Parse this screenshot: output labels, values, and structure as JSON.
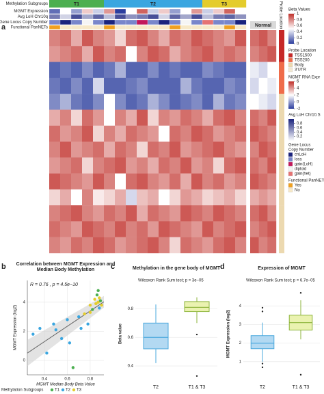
{
  "panel_a": {
    "label": "a",
    "track_labels": [
      "Methylation Subgroups",
      "MGMT Expression",
      "Avg LoH Chr10q",
      "Gene Locus Copy Number",
      "Functional PanNETs"
    ],
    "subgroups": {
      "names": [
        "T1",
        "T2",
        "T3"
      ],
      "colors": [
        "#4caf50",
        "#3aa6e0",
        "#e4cc2c"
      ],
      "values": [
        0,
        0,
        0,
        0,
        0,
        1,
        1,
        1,
        1,
        1,
        1,
        1,
        1,
        1,
        2,
        2,
        2,
        2
      ]
    },
    "mgmt_expression": [
      -1,
      2,
      0,
      3,
      1,
      4,
      -2,
      2,
      5,
      1,
      3,
      0,
      2,
      4,
      1,
      3,
      5,
      2
    ],
    "avg_loh": [
      0.6,
      0.2,
      0.8,
      0.4,
      0.7,
      0.3,
      0.8,
      0.5,
      0.6,
      0.8,
      0.2,
      0.7,
      0.4,
      0.8,
      0.3,
      0.6,
      0.7,
      0.5
    ],
    "copy_number": [
      1,
      0,
      1,
      3,
      1,
      0,
      1,
      1,
      2,
      1,
      0,
      1,
      3,
      1,
      4,
      1,
      1,
      0
    ],
    "functional": [
      0,
      1,
      1,
      1,
      1,
      0,
      1,
      1,
      1,
      1,
      1,
      0,
      1,
      1,
      1,
      1,
      0,
      1
    ],
    "normal_label": "Normal",
    "probe_location_label": "Probe Location",
    "probe_location": [
      0,
      0,
      1,
      1,
      2,
      2,
      2,
      2,
      2,
      2,
      2,
      2,
      2,
      2
    ],
    "heatmap": {
      "values": [
        [
          0.8,
          0.85,
          0.7,
          0.9,
          0.8,
          0.75,
          0.6,
          0.85,
          0.9,
          0.8,
          0.7,
          0.85,
          0.8,
          0.9,
          0.85,
          0.8,
          0.75,
          0.9
        ],
        [
          0.75,
          0.8,
          0.85,
          0.7,
          0.9,
          0.8,
          0.85,
          0.5,
          0.8,
          0.9,
          0.85,
          0.7,
          0.8,
          0.85,
          0.9,
          0.8,
          0.85,
          0.8
        ],
        [
          0.1,
          0.15,
          0.1,
          0.2,
          0.1,
          0.15,
          0.3,
          0.1,
          0.1,
          0.2,
          0.1,
          0.15,
          0.1,
          0.1,
          0.2,
          0.15,
          0.1,
          0.1
        ],
        [
          0.15,
          0.1,
          0.2,
          0.1,
          0.4,
          0.1,
          0.1,
          0.15,
          0.2,
          0.1,
          0.1,
          0.1,
          0.3,
          0.15,
          0.1,
          0.1,
          0.2,
          0.15
        ],
        [
          0.2,
          0.3,
          0.15,
          0.1,
          0.2,
          0.5,
          0.2,
          0.1,
          0.15,
          0.3,
          0.2,
          0.1,
          0.15,
          0.2,
          0.1,
          0.3,
          0.15,
          0.2
        ],
        [
          0.7,
          0.8,
          0.6,
          0.85,
          0.75,
          0.5,
          0.8,
          0.7,
          0.9,
          0.6,
          0.8,
          0.75,
          0.85,
          0.8,
          0.7,
          0.85,
          0.9,
          0.8
        ],
        [
          0.85,
          0.75,
          0.8,
          0.9,
          0.6,
          0.8,
          0.7,
          0.85,
          0.8,
          0.75,
          0.5,
          0.85,
          0.8,
          0.9,
          0.85,
          0.75,
          0.8,
          0.85
        ],
        [
          0.8,
          0.9,
          0.75,
          0.8,
          0.85,
          0.7,
          0.85,
          0.8,
          0.6,
          0.85,
          0.8,
          0.9,
          0.75,
          0.8,
          0.85,
          0.9,
          0.8,
          0.75
        ],
        [
          0.75,
          0.8,
          0.85,
          0.6,
          0.8,
          0.85,
          0.9,
          0.75,
          0.8,
          0.7,
          0.85,
          0.8,
          0.9,
          0.75,
          0.8,
          0.6,
          0.85,
          0.9
        ],
        [
          0.9,
          0.85,
          0.8,
          0.75,
          0.9,
          0.8,
          0.5,
          0.85,
          0.9,
          0.8,
          0.75,
          0.85,
          0.7,
          0.9,
          0.8,
          0.85,
          0.75,
          0.8
        ],
        [
          0.6,
          0.7,
          0.5,
          0.8,
          0.55,
          0.6,
          0.7,
          0.4,
          0.65,
          0.7,
          0.5,
          0.6,
          0.75,
          0.7,
          0.6,
          0.65,
          0.7,
          0.6
        ],
        [
          0.8,
          0.85,
          0.9,
          0.8,
          0.75,
          0.85,
          0.8,
          0.9,
          0.7,
          0.85,
          0.8,
          0.75,
          0.9,
          0.85,
          0.8,
          0.9,
          0.85,
          0.8
        ],
        [
          0.85,
          0.8,
          0.75,
          0.9,
          0.85,
          0.8,
          0.9,
          0.8,
          0.85,
          0.75,
          0.9,
          0.85,
          0.8,
          0.75,
          0.9,
          0.8,
          0.85,
          0.9
        ],
        [
          0.8,
          0.75,
          0.85,
          0.8,
          0.9,
          0.85,
          0.75,
          0.8,
          0.85,
          0.9,
          0.8,
          0.6,
          0.85,
          0.8,
          0.75,
          0.85,
          0.9,
          0.8
        ]
      ],
      "normal": [
        [
          0.85,
          0.9,
          0.8
        ],
        [
          0.8,
          0.85,
          0.9
        ],
        [
          0.45,
          0.4,
          0.5
        ],
        [
          0.4,
          0.5,
          0.45
        ],
        [
          0.5,
          0.45,
          0.4
        ],
        [
          0.85,
          0.8,
          0.9
        ],
        [
          0.9,
          0.85,
          0.8
        ],
        [
          0.8,
          0.9,
          0.85
        ],
        [
          0.85,
          0.8,
          0.9
        ],
        [
          0.9,
          0.85,
          0.8
        ],
        [
          0.7,
          0.75,
          0.7
        ],
        [
          0.85,
          0.9,
          0.8
        ],
        [
          0.8,
          0.85,
          0.9
        ],
        [
          0.9,
          0.8,
          0.85
        ]
      ]
    },
    "legend": {
      "beta": {
        "title": "Beta Values",
        "lim": [
          0,
          1
        ],
        "ticks": [
          1,
          0.8,
          0.6,
          0.4,
          0.2,
          0
        ]
      },
      "probe_location": {
        "title": "Probe Location",
        "items": [
          "TSS1500",
          "TSS200",
          "Body",
          "3'UTR"
        ],
        "colors": [
          "#c62828",
          "#ef6c4a",
          "#ecd9b0",
          "#f3e9d3"
        ]
      },
      "rna": {
        "title": "MGMT RNA Expr",
        "lim": [
          -2,
          6
        ],
        "ticks": [
          6,
          4,
          2,
          0,
          -2
        ]
      },
      "loh": {
        "title": "Avg LoH Chr10.S",
        "lim": [
          0,
          1
        ],
        "ticks": [
          0.8,
          0.6,
          0.4,
          0.2
        ]
      },
      "copy_number": {
        "title": [
          "Gene Locus",
          "Copy Number"
        ],
        "items": [
          "cnLoH",
          "loss",
          "gain(LoH)",
          "diploid",
          "gain(het)"
        ],
        "colors": [
          "#1a237e",
          "#7986cb",
          "#c2185b",
          "#f5f5f5",
          "#e57373"
        ]
      },
      "functional": {
        "title": "Functional PanNETs",
        "items": [
          "Yes",
          "No"
        ],
        "colors": [
          "#f0a020",
          "#f7e9c8"
        ]
      }
    }
  },
  "panel_b": {
    "label": "b",
    "title": [
      "Correlation between MGMT Expression and",
      "Median Body Methylation"
    ],
    "stat": "R = 0.76 , p = 4.5e−10",
    "xlabel": "MGMT Median Body Beta Value",
    "ylabel": "MGMT Expression (log2)",
    "xlim": [
      0.25,
      0.92
    ],
    "ylim": [
      -1,
      5.5
    ],
    "xticks": [
      0.4,
      0.6,
      0.8
    ],
    "yticks": [
      0,
      2,
      4
    ],
    "x": [
      0.3,
      0.36,
      0.42,
      0.48,
      0.55,
      0.6,
      0.65,
      0.7,
      0.72,
      0.75,
      0.78,
      0.8,
      0.82,
      0.84,
      0.85,
      0.86,
      0.87,
      0.88,
      0.88,
      0.89,
      0.9,
      0.62,
      0.5,
      0.8,
      0.87
    ],
    "y": [
      1.8,
      2.2,
      0.5,
      2.5,
      1.5,
      2.8,
      -0.5,
      3.0,
      2.2,
      3.2,
      2.5,
      3.8,
      3.5,
      4.2,
      3.9,
      4.5,
      4.0,
      4.3,
      3.6,
      4.1,
      3.8,
      1.2,
      2.1,
      3.3,
      4.8
    ],
    "group": [
      1,
      1,
      1,
      1,
      1,
      1,
      0,
      1,
      1,
      2,
      1,
      2,
      0,
      2,
      2,
      0,
      2,
      2,
      1,
      0,
      2,
      1,
      1,
      2,
      0
    ],
    "legend_title": "Methylation Subgroups",
    "groups": [
      "T1",
      "T2",
      "T3"
    ],
    "colors": [
      "#4caf50",
      "#3aa6e0",
      "#e4cc2c"
    ]
  },
  "panel_c": {
    "label": "c",
    "title": "Methylation in the gene body of MGMT",
    "stat": "Wilcoxon Rank Sum test; p = 3e−05",
    "ylabel": "Beta value",
    "ylim": [
      0.3,
      0.95
    ],
    "yticks": [
      0.4,
      0.6,
      0.8
    ],
    "categories": [
      "T2",
      "T1 & T3"
    ],
    "fills": [
      "#b3d9f2",
      "#eaf2b0"
    ],
    "strokes": [
      "#4aa8dd",
      "#8bb33a"
    ],
    "low": [
      0.42,
      0.7
    ],
    "q1": [
      0.52,
      0.78
    ],
    "median": [
      0.6,
      0.81
    ],
    "q3": [
      0.7,
      0.85
    ],
    "high": [
      0.83,
      0.88
    ],
    "outliers": [
      [],
      [
        0.62,
        0.33
      ]
    ]
  },
  "panel_d": {
    "label": "d",
    "title": "Expression of MGMT",
    "stat": "Wilcoxon Rank Sum test; p = 6.7e−05",
    "ylabel": "MGMT Expression (log2)",
    "ylim": [
      0,
      5
    ],
    "yticks": [
      1,
      2,
      3,
      4
    ],
    "categories": [
      "T2",
      "T1 & T3"
    ],
    "fills": [
      "#b3d9f2",
      "#eaf2b0"
    ],
    "strokes": [
      "#4aa8dd",
      "#8bb33a"
    ],
    "low": [
      1.0,
      2.2
    ],
    "q1": [
      1.7,
      2.7
    ],
    "median": [
      2.0,
      3.1
    ],
    "q3": [
      2.4,
      3.5
    ],
    "high": [
      3.1,
      4.3
    ],
    "outliers": [
      [
        3.9,
        3.7,
        0.9,
        0.7
      ],
      [
        4.7,
        0.3
      ]
    ]
  }
}
